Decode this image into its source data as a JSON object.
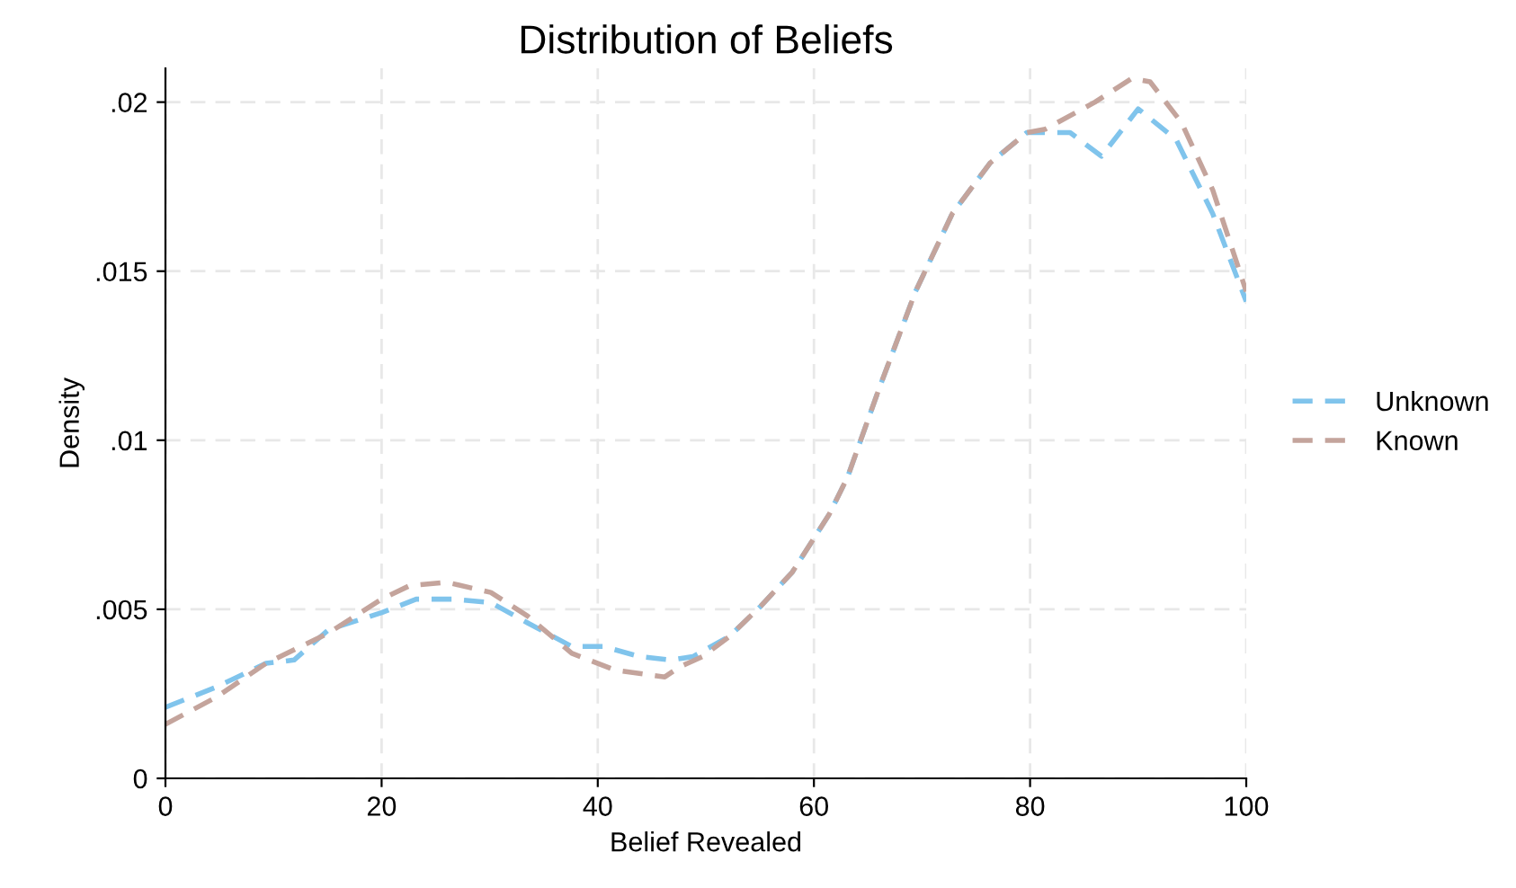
{
  "chart_data": {
    "type": "line",
    "title": "Distribution of Beliefs",
    "xlabel": "Belief Revealed",
    "ylabel": "Density",
    "xlim": [
      0,
      100
    ],
    "xticks": [
      0,
      20,
      40,
      60,
      80,
      100
    ],
    "ylim": [
      0,
      0.021
    ],
    "yticks": [
      0,
      {
        "value": 0.005,
        "label": ".005"
      },
      {
        "value": 0.01,
        "label": ".01"
      },
      {
        "value": 0.015,
        "label": ".015"
      },
      {
        "value": 0.02,
        "label": ".02"
      }
    ],
    "grid": true,
    "legend": "right",
    "line_style": "dashed",
    "marker": "none",
    "series": [
      {
        "name": "Unknown",
        "color": "#80c4ec",
        "x": [
          0,
          4.7,
          9.3,
          11.9,
          15.1,
          20,
          23.2,
          26.6,
          30.1,
          33.5,
          37.6,
          40.5,
          43.9,
          46.8,
          48.8,
          52.2,
          55.1,
          58,
          61.4,
          63.1,
          66,
          69.4,
          72.8,
          76.3,
          79.7,
          83.7,
          86.6,
          90,
          93.5,
          96.9,
          100
        ],
        "values": [
          0.0021,
          0.0027,
          0.0034,
          0.0035,
          0.0044,
          0.0049,
          0.0053,
          0.0053,
          0.0052,
          0.0046,
          0.0039,
          0.0039,
          0.0036,
          0.0035,
          0.0036,
          0.0042,
          0.0051,
          0.0061,
          0.0078,
          0.0089,
          0.0115,
          0.0144,
          0.0167,
          0.0182,
          0.0191,
          0.0191,
          0.0184,
          0.0198,
          0.0189,
          0.0167,
          0.0141
        ]
      },
      {
        "name": "Known",
        "color": "#c4a49c",
        "x": [
          0,
          4.7,
          9.3,
          15.1,
          20,
          22.6,
          26,
          30.1,
          33.5,
          37.6,
          41.6,
          46.2,
          47.6,
          49.7,
          52.2,
          55.1,
          58,
          61.4,
          63.1,
          66,
          69.4,
          72.8,
          76.3,
          79.7,
          81.4,
          86,
          89.4,
          91.1,
          94,
          96.9,
          100
        ],
        "values": [
          0.0016,
          0.0024,
          0.0034,
          0.0043,
          0.0053,
          0.0057,
          0.0058,
          0.0055,
          0.0048,
          0.0037,
          0.0032,
          0.003,
          0.0033,
          0.0036,
          0.0042,
          0.0051,
          0.0061,
          0.0078,
          0.0089,
          0.0115,
          0.0144,
          0.0167,
          0.0182,
          0.0191,
          0.0192,
          0.02,
          0.0207,
          0.0206,
          0.0194,
          0.0174,
          0.0144
        ]
      }
    ]
  }
}
